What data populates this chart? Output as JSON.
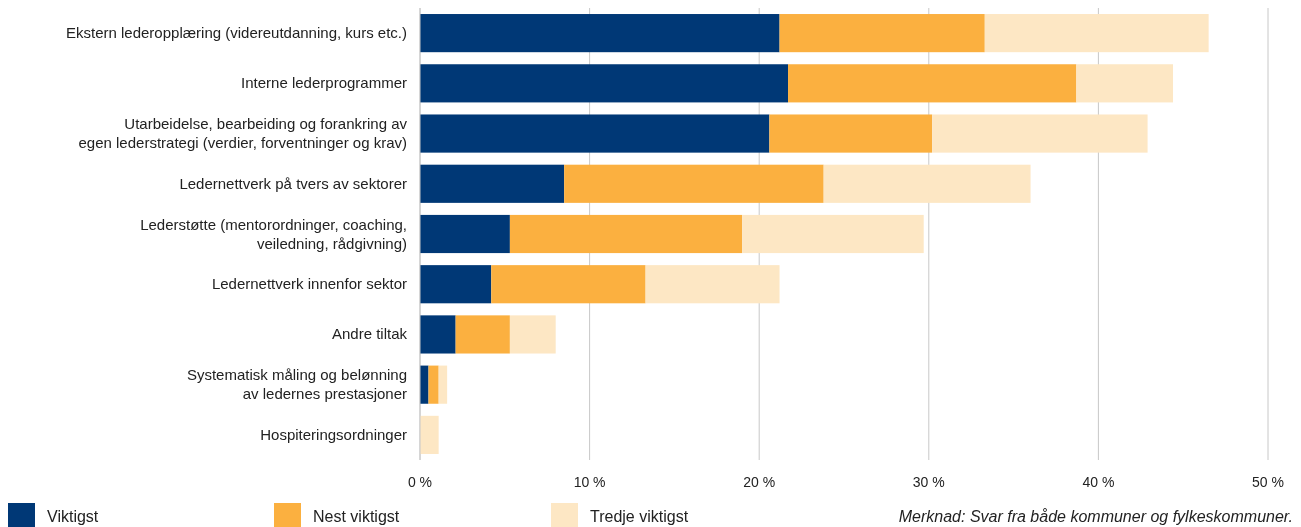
{
  "chart_data": {
    "type": "bar",
    "orientation": "horizontal",
    "stacked": true,
    "categories": [
      "Ekstern lederopplæring (videreutdanning, kurs etc.)",
      "Interne lederprogrammer",
      "Utarbeidelse, bearbeiding og forankring av\negen lederstrategi (verdier, forventninger og krav)",
      "Ledernettverk på tvers av sektorer",
      "Lederstøtte (mentorordninger, coaching,\nveiledning, rådgivning)",
      "Ledernettverk innenfor sektor",
      "Andre tiltak",
      "Systematisk måling og belønning\nav ledernes prestasjoner",
      "Hospiteringsordninger"
    ],
    "series": [
      {
        "name": "Viktigst",
        "color": "#003876",
        "values": [
          21.2,
          21.7,
          20.6,
          8.5,
          5.3,
          4.2,
          2.1,
          0.5,
          0
        ]
      },
      {
        "name": "Nest viktigst",
        "color": "#fbb040",
        "values": [
          12.1,
          17.0,
          9.6,
          15.3,
          13.7,
          9.1,
          3.2,
          0.6,
          0
        ]
      },
      {
        "name": "Tredje viktigst",
        "color": "#fde7c4",
        "values": [
          13.2,
          5.7,
          12.7,
          12.2,
          10.7,
          7.9,
          2.7,
          0.5,
          1.1
        ]
      }
    ],
    "xlim": [
      0,
      50
    ],
    "xticks": [
      {
        "value": 0,
        "label": "0 %"
      },
      {
        "value": 10,
        "label": "10 %"
      },
      {
        "value": 20,
        "label": "20 %"
      },
      {
        "value": 30,
        "label": "30 %"
      },
      {
        "value": 40,
        "label": "40 %"
      },
      {
        "value": 50,
        "label": "50 %"
      }
    ],
    "grid": "x",
    "legend": "bottom",
    "annotations": [
      "Merknad: Svar fra både kommuner og fylkeskommuner."
    ]
  }
}
